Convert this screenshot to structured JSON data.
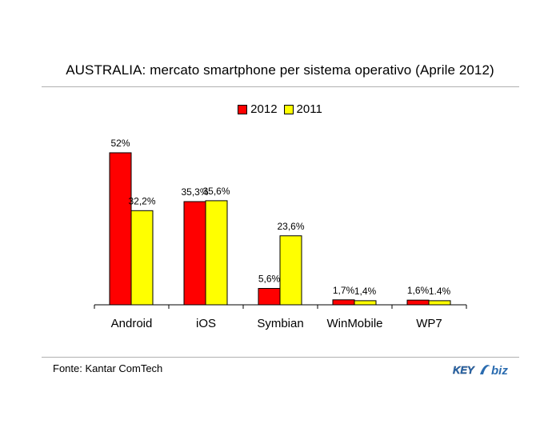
{
  "chart_data": {
    "type": "bar",
    "title": "AUSTRALIA: mercato smartphone per sistema operativo (Aprile 2012)",
    "categories": [
      "Android",
      "iOS",
      "Symbian",
      "WinMobile",
      "WP7"
    ],
    "series": [
      {
        "name": "2012",
        "color": "#ff0000",
        "values": [
          52,
          35.3,
          5.6,
          1.7,
          1.6
        ],
        "labels": [
          "52%",
          "35,3%",
          "5,6%",
          "1,7%",
          "1,6%"
        ]
      },
      {
        "name": "2011",
        "color": "#ffff00",
        "values": [
          32.2,
          35.6,
          23.6,
          1.4,
          1.4
        ],
        "labels": [
          "32,2%",
          "35,6%",
          "23,6%",
          "1,4%",
          "1.4%"
        ]
      }
    ],
    "ylim": [
      0,
      55
    ],
    "grid": false,
    "legend_position": "top-center"
  },
  "source": "Fonte: Kantar ComTech",
  "logo": {
    "text_key": "KEY",
    "text_biz": "biz",
    "color": "#2b6cb0"
  }
}
